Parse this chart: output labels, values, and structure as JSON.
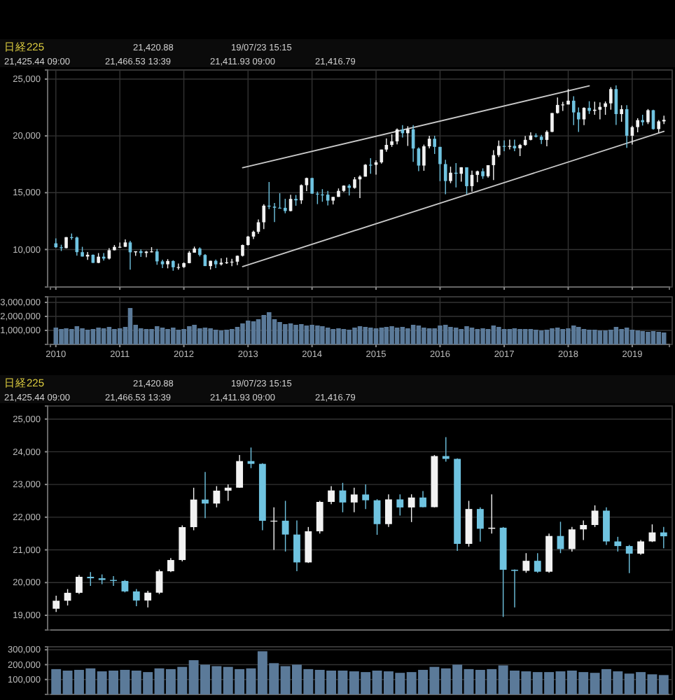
{
  "chart_data": [
    {
      "type": "candlestick",
      "title": "日経225",
      "annotations": [
        "21,420.88",
        "19/07/23 15:15",
        "21,425.44 09:00",
        "21,466.53 13:39",
        "21,411.93 09:00",
        "21,416.79"
      ],
      "x": [
        "2010-01",
        "2010-02",
        "2010-03",
        "2010-04",
        "2010-05",
        "2010-06",
        "2010-07",
        "2010-08",
        "2010-09",
        "2010-10",
        "2010-11",
        "2010-12",
        "2011-01",
        "2011-02",
        "2011-03",
        "2011-04",
        "2011-05",
        "2011-06",
        "2011-07",
        "2011-08",
        "2011-09",
        "2011-10",
        "2011-11",
        "2011-12",
        "2012-01",
        "2012-02",
        "2012-03",
        "2012-04",
        "2012-05",
        "2012-06",
        "2012-07",
        "2012-08",
        "2012-09",
        "2012-10",
        "2012-11",
        "2012-12",
        "2013-01",
        "2013-02",
        "2013-03",
        "2013-04",
        "2013-05",
        "2013-06",
        "2013-07",
        "2013-08",
        "2013-09",
        "2013-10",
        "2013-11",
        "2013-12",
        "2014-01",
        "2014-02",
        "2014-03",
        "2014-04",
        "2014-05",
        "2014-06",
        "2014-07",
        "2014-08",
        "2014-09",
        "2014-10",
        "2014-11",
        "2014-12",
        "2015-01",
        "2015-02",
        "2015-03",
        "2015-04",
        "2015-05",
        "2015-06",
        "2015-07",
        "2015-08",
        "2015-09",
        "2015-10",
        "2015-11",
        "2015-12",
        "2016-01",
        "2016-02",
        "2016-03",
        "2016-04",
        "2016-05",
        "2016-06",
        "2016-07",
        "2016-08",
        "2016-09",
        "2016-10",
        "2016-11",
        "2016-12",
        "2017-01",
        "2017-02",
        "2017-03",
        "2017-04",
        "2017-05",
        "2017-06",
        "2017-07",
        "2017-08",
        "2017-09",
        "2017-10",
        "2017-11",
        "2017-12",
        "2018-01",
        "2018-02",
        "2018-03",
        "2018-04",
        "2018-05",
        "2018-06",
        "2018-07",
        "2018-08",
        "2018-09",
        "2018-10",
        "2018-11",
        "2018-12",
        "2019-01",
        "2019-02",
        "2019-03",
        "2019-04",
        "2019-05",
        "2019-06",
        "2019-07"
      ],
      "ohlc": [
        [
          10546,
          10982,
          10150,
          10198
        ],
        [
          10198,
          10420,
          9868,
          10126
        ],
        [
          10126,
          11097,
          10105,
          11089
        ],
        [
          11089,
          11408,
          10860,
          11057
        ],
        [
          11057,
          11139,
          9459,
          9768
        ],
        [
          9768,
          10238,
          9380,
          9382
        ],
        [
          9382,
          9787,
          9091,
          9537
        ],
        [
          9537,
          9572,
          8807,
          8824
        ],
        [
          8824,
          9686,
          8796,
          9369
        ],
        [
          9369,
          9691,
          9027,
          9202
        ],
        [
          9202,
          10115,
          9123,
          9937
        ],
        [
          9937,
          10394,
          9918,
          10228
        ],
        [
          10228,
          10620,
          10150,
          10237
        ],
        [
          10237,
          10891,
          10232,
          10624
        ],
        [
          10624,
          10768,
          8227,
          9755
        ],
        [
          9755,
          9849,
          9441,
          9849
        ],
        [
          9849,
          10017,
          9351,
          9693
        ],
        [
          9693,
          9876,
          9318,
          9816
        ],
        [
          9816,
          10207,
          9740,
          9833
        ],
        [
          9833,
          10040,
          8656,
          8955
        ],
        [
          8955,
          9097,
          8359,
          8700
        ],
        [
          8700,
          9152,
          8343,
          8988
        ],
        [
          8988,
          9050,
          8135,
          8434
        ],
        [
          8434,
          8762,
          8227,
          8455
        ],
        [
          8455,
          8866,
          8378,
          8802
        ],
        [
          8802,
          9866,
          8784,
          9723
        ],
        [
          9723,
          10255,
          9722,
          10083
        ],
        [
          10083,
          10190,
          9388,
          9520
        ],
        [
          9520,
          9597,
          8542,
          8542
        ],
        [
          8542,
          9006,
          8238,
          9006
        ],
        [
          9006,
          9124,
          8365,
          8695
        ],
        [
          8695,
          9222,
          8602,
          8839
        ],
        [
          8839,
          9288,
          8732,
          8870
        ],
        [
          8870,
          9180,
          8534,
          8928
        ],
        [
          8928,
          9470,
          8619,
          9446
        ],
        [
          9446,
          10433,
          9384,
          10395
        ],
        [
          10395,
          11191,
          10350,
          11138
        ],
        [
          11138,
          11662,
          10927,
          11559
        ],
        [
          11559,
          12650,
          11380,
          12397
        ],
        [
          12397,
          13983,
          11805,
          13860
        ],
        [
          13860,
          15942,
          13555,
          13774
        ],
        [
          13774,
          14100,
          12415,
          13677
        ],
        [
          13677,
          14953,
          13626,
          13668
        ],
        [
          13668,
          14466,
          13188,
          13388
        ],
        [
          13388,
          14817,
          13359,
          14455
        ],
        [
          14455,
          14799,
          13853,
          14327
        ],
        [
          14327,
          15727,
          14015,
          15662
        ],
        [
          15662,
          16320,
          15141,
          16291
        ],
        [
          16291,
          16320,
          14914,
          14914
        ],
        [
          14914,
          15098,
          13995,
          14841
        ],
        [
          14841,
          15312,
          14203,
          14828
        ],
        [
          14828,
          15164,
          13885,
          14304
        ],
        [
          14304,
          14632,
          13964,
          14632
        ],
        [
          14632,
          15376,
          14632,
          15162
        ],
        [
          15162,
          15646,
          15068,
          15621
        ],
        [
          15621,
          15759,
          14753,
          15425
        ],
        [
          15425,
          16374,
          15352,
          16174
        ],
        [
          16174,
          16533,
          14529,
          16414
        ],
        [
          16414,
          17520,
          16413,
          17460
        ],
        [
          17460,
          18030,
          16672,
          17451
        ],
        [
          17451,
          17850,
          16592,
          17674
        ],
        [
          17674,
          18798,
          17555,
          18798
        ],
        [
          18798,
          19778,
          18606,
          19207
        ],
        [
          19207,
          20133,
          19034,
          19520
        ],
        [
          19520,
          20655,
          19258,
          20563
        ],
        [
          20563,
          20953,
          19855,
          20236
        ],
        [
          20236,
          20850,
          19115,
          20585
        ],
        [
          20585,
          20946,
          17714,
          18890
        ],
        [
          18890,
          18990,
          16901,
          17388
        ],
        [
          17388,
          19230,
          16930,
          19083
        ],
        [
          19083,
          20012,
          18900,
          19747
        ],
        [
          19747,
          20012,
          18410,
          19034
        ],
        [
          19034,
          19034,
          16017,
          17518
        ],
        [
          17518,
          17905,
          14865,
          16027
        ],
        [
          16027,
          17291,
          15837,
          16759
        ],
        [
          16759,
          17613,
          15471,
          16666
        ],
        [
          16666,
          17251,
          15975,
          17235
        ],
        [
          17235,
          17235,
          14864,
          15576
        ],
        [
          15576,
          16938,
          15095,
          16569
        ],
        [
          16569,
          16938,
          15922,
          16887
        ],
        [
          16887,
          17142,
          16220,
          16450
        ],
        [
          16450,
          17425,
          16321,
          17425
        ],
        [
          17425,
          18746,
          16111,
          18308
        ],
        [
          18308,
          19592,
          18137,
          19114
        ],
        [
          19114,
          19615,
          18650,
          19041
        ],
        [
          19041,
          19668,
          18806,
          19119
        ],
        [
          19119,
          19668,
          18660,
          18909
        ],
        [
          18909,
          19289,
          18224,
          19197
        ],
        [
          19197,
          19998,
          19125,
          19651
        ],
        [
          19651,
          20318,
          19607,
          20033
        ],
        [
          20033,
          20225,
          19860,
          19925
        ],
        [
          19925,
          20080,
          19280,
          19646
        ],
        [
          19646,
          20481,
          19081,
          20356
        ],
        [
          20356,
          22012,
          20327,
          22012
        ],
        [
          22012,
          23382,
          21972,
          22725
        ],
        [
          22725,
          23000,
          22200,
          22765
        ],
        [
          22765,
          24129,
          22765,
          23098
        ],
        [
          23098,
          23486,
          20950,
          22068
        ],
        [
          22068,
          22502,
          20347,
          21454
        ],
        [
          21454,
          22519,
          20950,
          22468
        ],
        [
          22468,
          23050,
          21931,
          22202
        ],
        [
          22202,
          23011,
          21859,
          22305
        ],
        [
          22305,
          22949,
          21462,
          22554
        ],
        [
          22554,
          23032,
          21851,
          22865
        ],
        [
          22865,
          24286,
          22307,
          24120
        ],
        [
          24120,
          24448,
          20971,
          21920
        ],
        [
          21920,
          22698,
          21243,
          22351
        ],
        [
          22351,
          22698,
          18949,
          20015
        ],
        [
          20015,
          20892,
          19241,
          20773
        ],
        [
          20773,
          21556,
          20315,
          21385
        ],
        [
          21385,
          21860,
          20911,
          21206
        ],
        [
          21206,
          22362,
          21038,
          22259
        ],
        [
          22259,
          22307,
          20552,
          20601
        ],
        [
          20601,
          21400,
          20289,
          21276
        ],
        [
          21276,
          21784,
          21046,
          21416
        ]
      ],
      "series": [
        {
          "type": "line",
          "color": "#c8c8c8",
          "x": [
            "2012-12",
            "2018-05"
          ],
          "values": [
            17200,
            24400
          ]
        },
        {
          "type": "line",
          "color": "#c8c8c8",
          "x": [
            "2012-12",
            "2019-07"
          ],
          "values": [
            8500,
            20400
          ]
        }
      ],
      "xlim": [
        "2009-12",
        "2019-08"
      ],
      "xticks": [
        {
          "value": "2010",
          "label": null
        },
        {
          "value": "2011",
          "label": null
        },
        {
          "value": "2012",
          "label": null
        },
        {
          "value": "2013",
          "label": null
        },
        {
          "value": "2014",
          "label": null
        },
        {
          "value": "2015",
          "label": null
        },
        {
          "value": "2016",
          "label": null
        },
        {
          "value": "2017",
          "label": null
        },
        {
          "value": "2018",
          "label": null
        },
        {
          "value": "2019",
          "label": null
        }
      ],
      "ylim": [
        6700,
        25800
      ],
      "yticks": [
        {
          "value": 10000,
          "label": "10,000"
        },
        {
          "value": 15000,
          "label": "15,000"
        },
        {
          "value": 20000,
          "label": "20,000"
        },
        {
          "value": 25000,
          "label": "25,000"
        }
      ],
      "grid": true,
      "tick_labels": "y"
    },
    {
      "type": "bar",
      "color": "#5b7a99",
      "x": [
        "2010-01",
        "2010-02",
        "2010-03",
        "2010-04",
        "2010-05",
        "2010-06",
        "2010-07",
        "2010-08",
        "2010-09",
        "2010-10",
        "2010-11",
        "2010-12",
        "2011-01",
        "2011-02",
        "2011-03",
        "2011-04",
        "2011-05",
        "2011-06",
        "2011-07",
        "2011-08",
        "2011-09",
        "2011-10",
        "2011-11",
        "2011-12",
        "2012-01",
        "2012-02",
        "2012-03",
        "2012-04",
        "2012-05",
        "2012-06",
        "2012-07",
        "2012-08",
        "2012-09",
        "2012-10",
        "2012-11",
        "2012-12",
        "2013-01",
        "2013-02",
        "2013-03",
        "2013-04",
        "2013-05",
        "2013-06",
        "2013-07",
        "2013-08",
        "2013-09",
        "2013-10",
        "2013-11",
        "2013-12",
        "2014-01",
        "2014-02",
        "2014-03",
        "2014-04",
        "2014-05",
        "2014-06",
        "2014-07",
        "2014-08",
        "2014-09",
        "2014-10",
        "2014-11",
        "2014-12",
        "2015-01",
        "2015-02",
        "2015-03",
        "2015-04",
        "2015-05",
        "2015-06",
        "2015-07",
        "2015-08",
        "2015-09",
        "2015-10",
        "2015-11",
        "2015-12",
        "2016-01",
        "2016-02",
        "2016-03",
        "2016-04",
        "2016-05",
        "2016-06",
        "2016-07",
        "2016-08",
        "2016-09",
        "2016-10",
        "2016-11",
        "2016-12",
        "2017-01",
        "2017-02",
        "2017-03",
        "2017-04",
        "2017-05",
        "2017-06",
        "2017-07",
        "2017-08",
        "2017-09",
        "2017-10",
        "2017-11",
        "2017-12",
        "2018-01",
        "2018-02",
        "2018-03",
        "2018-04",
        "2018-05",
        "2018-06",
        "2018-07",
        "2018-08",
        "2018-09",
        "2018-10",
        "2018-11",
        "2018-12",
        "2019-01",
        "2019-02",
        "2019-03",
        "2019-04",
        "2019-05",
        "2019-06",
        "2019-07"
      ],
      "values": [
        1200000,
        1100000,
        1150000,
        1100000,
        1300000,
        1150000,
        1050000,
        1100000,
        1200000,
        1150000,
        1250000,
        1100000,
        1150000,
        1250000,
        2600000,
        1400000,
        1150000,
        1100000,
        1100000,
        1300000,
        1200000,
        1100000,
        1200000,
        1050000,
        1100000,
        1300000,
        1400000,
        1150000,
        1200000,
        1150000,
        1050000,
        1000000,
        1050000,
        1100000,
        1250000,
        1500000,
        1700000,
        1650000,
        1800000,
        2100000,
        2300000,
        1800000,
        1600000,
        1450000,
        1500000,
        1400000,
        1450000,
        1350000,
        1400000,
        1350000,
        1300000,
        1200000,
        1100000,
        1150000,
        1100000,
        1050000,
        1200000,
        1300000,
        1250000,
        1200000,
        1150000,
        1200000,
        1250000,
        1300000,
        1200000,
        1250000,
        1150000,
        1400000,
        1350000,
        1200000,
        1150000,
        1150000,
        1350000,
        1400000,
        1250000,
        1200000,
        1100000,
        1300000,
        1200000,
        1100000,
        1150000,
        1100000,
        1350000,
        1250000,
        1100000,
        1100000,
        1150000,
        1100000,
        1100000,
        1100000,
        1050000,
        1000000,
        1050000,
        1150000,
        1200000,
        1100000,
        1150000,
        1350000,
        1250000,
        1100000,
        1050000,
        1050000,
        1000000,
        1000000,
        1050000,
        1250000,
        1100000,
        1200000,
        1050000,
        1000000,
        950000,
        900000,
        950000,
        900000,
        850000
      ],
      "xlim": [
        "2009-12",
        "2019-08"
      ],
      "xticks": [
        {
          "value": "2010",
          "label": "2010"
        },
        {
          "value": "2011",
          "label": "2011"
        },
        {
          "value": "2012",
          "label": "2012"
        },
        {
          "value": "2013",
          "label": "2013"
        },
        {
          "value": "2014",
          "label": "2014"
        },
        {
          "value": "2015",
          "label": "2015"
        },
        {
          "value": "2016",
          "label": "2016"
        },
        {
          "value": "2017",
          "label": "2017"
        },
        {
          "value": "2018",
          "label": "2018"
        },
        {
          "value": "2019",
          "label": "2019"
        }
      ],
      "ylim": [
        0,
        3400000
      ],
      "yticks": [
        {
          "value": 1000000,
          "label": "1,000,000"
        },
        {
          "value": 2000000,
          "label": "2,000,000"
        },
        {
          "value": 3000000,
          "label": "3,000,000"
        }
      ],
      "grid": true
    },
    {
      "type": "candlestick",
      "title": "日経225",
      "annotations": [
        "21,420.88",
        "19/07/23 15:15",
        "21,425.44 09:00",
        "21,466.53 13:39",
        "21,411.93 09:00",
        "21,416.79"
      ],
      "categories": [
        null,
        null,
        null,
        null,
        null,
        null,
        null,
        null,
        null,
        null,
        null,
        null,
        null,
        null,
        null,
        null,
        null,
        null,
        null,
        null,
        null,
        null,
        null,
        null,
        null,
        null,
        null,
        null,
        null,
        null,
        null,
        null,
        null,
        null,
        null,
        null,
        null,
        null,
        null,
        null,
        null,
        null,
        null,
        null,
        null,
        null,
        null,
        null,
        null,
        null,
        null,
        null,
        null,
        null
      ],
      "ohlc": [
        [
          19200,
          19600,
          19100,
          19445
        ],
        [
          19445,
          19800,
          19300,
          19687
        ],
        [
          19687,
          20230,
          19650,
          20177
        ],
        [
          20177,
          20320,
          19900,
          20132
        ],
        [
          20132,
          20250,
          19950,
          20080
        ],
        [
          20080,
          20200,
          19900,
          20050
        ],
        [
          20050,
          20080,
          19700,
          19730
        ],
        [
          19730,
          19800,
          19280,
          19452
        ],
        [
          19452,
          19750,
          19240,
          19691
        ],
        [
          19691,
          20400,
          19650,
          20347
        ],
        [
          20347,
          20750,
          20320,
          20690
        ],
        [
          20690,
          21750,
          20650,
          21696
        ],
        [
          21696,
          22900,
          21600,
          22539
        ],
        [
          22539,
          23380,
          21970,
          22417
        ],
        [
          22417,
          22950,
          22300,
          22811
        ],
        [
          22811,
          23000,
          22500,
          22902
        ],
        [
          22902,
          23900,
          22900,
          23715
        ],
        [
          23715,
          24130,
          23500,
          23631
        ],
        [
          23631,
          23650,
          21600,
          21890
        ],
        [
          21890,
          22300,
          21000,
          21892
        ],
        [
          21892,
          22500,
          20950,
          21469
        ],
        [
          21469,
          21900,
          20350,
          20617
        ],
        [
          20617,
          21700,
          20600,
          21569
        ],
        [
          21569,
          22500,
          21500,
          22467
        ],
        [
          22467,
          22950,
          22400,
          22817
        ],
        [
          22817,
          23050,
          22150,
          22450
        ],
        [
          22450,
          22900,
          22150,
          22694
        ],
        [
          22694,
          23000,
          22250,
          22517
        ],
        [
          22517,
          22550,
          21460,
          21788
        ],
        [
          21788,
          22700,
          21700,
          22544
        ],
        [
          22544,
          22700,
          22050,
          22298
        ],
        [
          22298,
          22700,
          21850,
          22601
        ],
        [
          22601,
          22800,
          22300,
          22307
        ],
        [
          22307,
          23900,
          22300,
          23869
        ],
        [
          23869,
          24448,
          23700,
          23783
        ],
        [
          23783,
          23800,
          20970,
          21184
        ],
        [
          21184,
          22500,
          21100,
          22250
        ],
        [
          22250,
          22300,
          21250,
          21646
        ],
        [
          21646,
          22700,
          21500,
          21678
        ],
        [
          21678,
          21700,
          18949,
          20392
        ],
        [
          20392,
          20400,
          19241,
          20359
        ],
        [
          20359,
          20900,
          20300,
          20666
        ],
        [
          20666,
          20900,
          20300,
          20333
        ],
        [
          20333,
          21500,
          20300,
          21425
        ],
        [
          21425,
          21860,
          20900,
          21025
        ],
        [
          21025,
          21700,
          20950,
          21627
        ],
        [
          21627,
          21900,
          21300,
          21761
        ],
        [
          21761,
          22362,
          21700,
          22200
        ],
        [
          22200,
          22300,
          21150,
          21258
        ],
        [
          21258,
          21400,
          20950,
          21117
        ],
        [
          21117,
          21150,
          20290,
          20885
        ],
        [
          20885,
          21300,
          20850,
          21259
        ],
        [
          21259,
          21780,
          21240,
          21534
        ],
        [
          21534,
          21700,
          21050,
          21416
        ]
      ],
      "ylim": [
        18550,
        25400
      ],
      "yticks": [
        {
          "value": 19000,
          "label": "19,000"
        },
        {
          "value": 20000,
          "label": "20,000"
        },
        {
          "value": 21000,
          "label": "21,000"
        },
        {
          "value": 22000,
          "label": "22,000"
        },
        {
          "value": 23000,
          "label": "23,000"
        },
        {
          "value": 24000,
          "label": "24,000"
        },
        {
          "value": 25000,
          "label": "25,000"
        }
      ],
      "grid": "y",
      "tick_labels": "y"
    },
    {
      "type": "bar",
      "color": "#5b7a99",
      "categories": [
        null,
        null,
        null,
        null,
        null,
        null,
        null,
        null,
        null,
        null,
        null,
        null,
        null,
        null,
        null,
        null,
        null,
        null,
        null,
        null,
        null,
        null,
        null,
        null,
        null,
        null,
        null,
        null,
        null,
        null,
        null,
        null,
        null,
        null,
        null,
        null,
        null,
        null,
        null,
        null,
        null,
        null,
        null,
        null,
        null,
        null,
        null,
        null,
        null,
        null,
        null,
        null,
        null,
        null
      ],
      "values": [
        170000,
        160000,
        165000,
        175000,
        155000,
        160000,
        165000,
        160000,
        150000,
        175000,
        170000,
        185000,
        230000,
        200000,
        190000,
        185000,
        170000,
        175000,
        290000,
        210000,
        190000,
        200000,
        170000,
        165000,
        160000,
        160000,
        155000,
        150000,
        160000,
        155000,
        145000,
        150000,
        165000,
        185000,
        175000,
        200000,
        170000,
        165000,
        170000,
        195000,
        160000,
        155000,
        150000,
        150000,
        155000,
        160000,
        150000,
        145000,
        170000,
        155000,
        140000,
        150000,
        135000,
        130000
      ],
      "ylim": [
        0,
        320000
      ],
      "yticks": [
        {
          "value": 100000,
          "label": "100,000"
        },
        {
          "value": 200000,
          "label": "200,000"
        },
        {
          "value": 300000,
          "label": "300,000"
        }
      ],
      "grid": "y",
      "tick_labels": "y"
    }
  ]
}
